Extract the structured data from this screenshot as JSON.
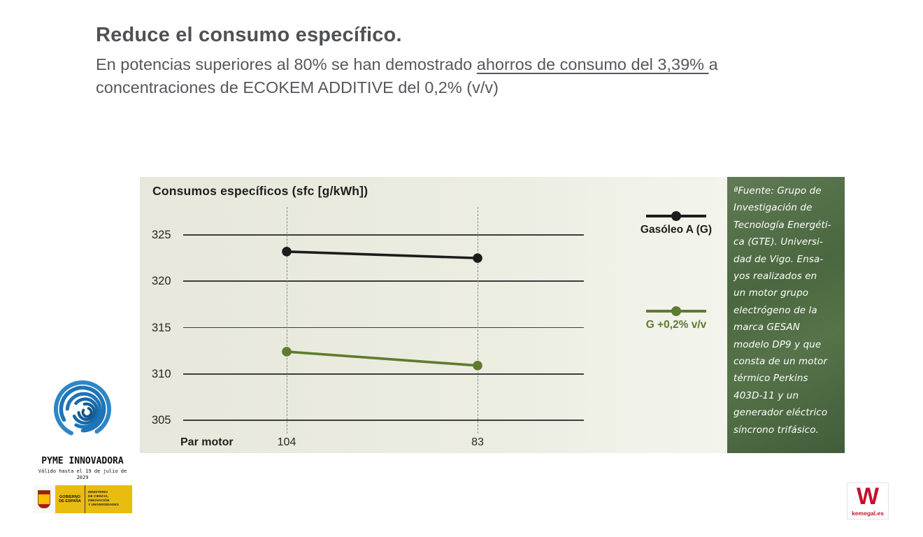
{
  "slide": {
    "title": "Reduce el consumo específico.",
    "subtitle_pre": "En potencias superiores al 80% se han demostrado ",
    "subtitle_underline": "ahorros de consumo del 3,39% ",
    "subtitle_post": "a",
    "subtitle_line2": "concentraciones de ECOKEM ADDITIVE del 0,2% (v/v)"
  },
  "chart_data": {
    "type": "line",
    "title": "Consumos específicos (sfc [g/kWh])",
    "x_label": "Par motor",
    "categories": [
      "104",
      "83"
    ],
    "y_ticks": [
      325,
      320,
      315,
      310,
      305
    ],
    "ylim": [
      303,
      327
    ],
    "grid": "horizontal solid lines at y ticks, vertical dashed lines at categories",
    "legend_position": "right",
    "series": [
      {
        "name": "Gasóleo A (G)",
        "color": "#1c1c1c",
        "values": [
          323.2,
          322.5
        ]
      },
      {
        "name": "G +0,2% v/v",
        "color": "#5e7b2f",
        "values": [
          312.4,
          310.9
        ]
      }
    ]
  },
  "source_panel": {
    "background": "#4a6642",
    "text": "ªFuente: Grupo de\nInvestigación de\nTecnología Energéti-\nca (GTE). Universi-\ndad de Vigo. Ensa-\nyos realizados en\nun motor grupo\nelectrógeno de la\nmarca GESAN\nmodelo DP9 y que\nconsta de un motor\ntérmico Perkins\n403D-11 y un\ngenerador eléctrico\nsíncrono trifásico."
  },
  "footer": {
    "pyme_label": "PYME INNOVADORA",
    "pyme_valid": "Válido hasta el 19 de julio de\n2029",
    "gov_text": "GOBIERNO\nDE ESPAÑA",
    "ministry_text": "MINISTERIO\nDE CIENCIA, INNOVACIÓN\nY UNIVERSIDADES",
    "brand_letter": "W",
    "brand_url": "kemegal.es"
  },
  "colors": {
    "accent_green": "#5e7b2f",
    "series_black": "#1c1c1c",
    "chart_bg": "#ecede1",
    "panel_green": "#4a6642",
    "brand_red": "#c8102e",
    "logo_blue": "#1e74b8"
  }
}
